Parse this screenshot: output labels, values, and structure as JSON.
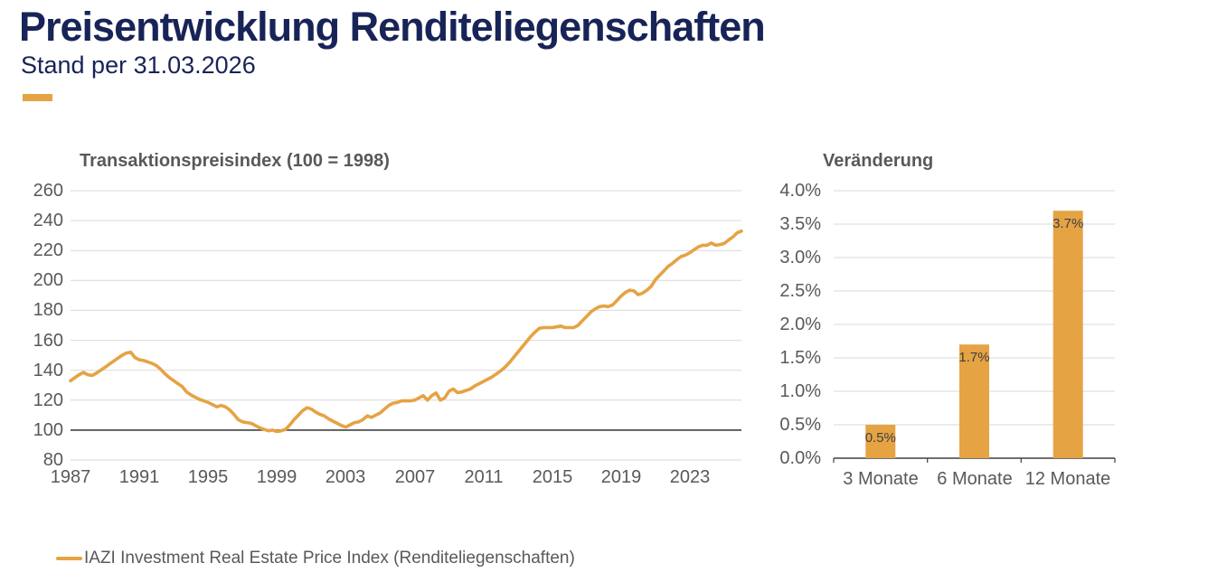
{
  "header": {
    "title": "Preisentwicklung Renditeliegenschaften",
    "subtitle": "Stand per 31.03.2026"
  },
  "colors": {
    "navy": "#182457",
    "orange": "#E5A344",
    "grid": "#D9D9D9",
    "axis_dark": "#404040",
    "axis_label": "#595959",
    "chart_title": "#595959",
    "bar_value_label": "#404040",
    "legend_text": "#595959"
  },
  "legend": {
    "label": "IAZI Investment Real Estate Price Index (Renditeliegenschaften)"
  },
  "chart_data": [
    {
      "id": "transaction-price-index",
      "type": "line",
      "title": "Transaktionspreisindex (100 = 1998)",
      "ylim": [
        80,
        260
      ],
      "ytick_step": 20,
      "ytick_labels": [
        "260",
        "240",
        "220",
        "200",
        "180",
        "160",
        "140",
        "120",
        "100",
        "80"
      ],
      "baseline_value": 100,
      "xtick_years": [
        1987,
        1991,
        1995,
        1999,
        2003,
        2007,
        2011,
        2015,
        2019,
        2023
      ],
      "xtick_labels": [
        "1987",
        "1991",
        "1995",
        "1999",
        "2003",
        "2007",
        "2011",
        "2015",
        "2019",
        "2023"
      ],
      "grid": true,
      "x_start": 1987.0,
      "x_step": 0.25,
      "series": [
        {
          "name": "IAZI Investment Real Estate Price Index (Renditeliegenschaften)",
          "color": "#E5A344",
          "values": [
            133,
            135,
            137,
            138.5,
            137,
            136.5,
            138,
            140,
            142,
            144,
            146,
            148,
            150,
            151.5,
            152,
            148.5,
            147,
            146.5,
            145.5,
            144.5,
            143,
            140.5,
            137.5,
            135,
            133,
            131,
            129,
            125.5,
            123.5,
            122,
            120.5,
            119.5,
            118.5,
            117,
            115.5,
            116.5,
            115.5,
            113.5,
            110.5,
            107,
            105.5,
            105,
            104.5,
            103,
            101.5,
            100.5,
            99.5,
            100,
            99,
            99.5,
            100.5,
            103.5,
            107,
            110,
            113,
            115,
            114,
            112,
            110.5,
            109.5,
            107.5,
            106,
            104.5,
            103,
            102,
            103.5,
            105,
            105.5,
            107,
            109.5,
            108.5,
            110,
            111.5,
            114,
            116.5,
            118,
            118.5,
            119.5,
            119.5,
            119.5,
            120,
            121.5,
            123,
            120,
            123,
            124.8,
            120,
            121.5,
            126,
            127.5,
            125,
            125.5,
            126.5,
            127.5,
            129.5,
            131,
            132.5,
            134,
            135.5,
            137.5,
            139.5,
            142,
            145,
            148.5,
            152,
            155.5,
            159,
            162.5,
            165.5,
            168,
            168.5,
            168.5,
            168.5,
            169,
            169.5,
            168.5,
            168.5,
            168.5,
            170,
            173,
            176,
            179,
            181,
            182.5,
            183,
            182.5,
            183.5,
            186.5,
            189.5,
            192,
            193.5,
            193,
            190.5,
            191.5,
            193.5,
            196,
            200.5,
            203.5,
            206.5,
            209.5,
            211.5,
            214,
            216,
            217,
            218.5,
            220.5,
            222.5,
            223.5,
            223.5,
            225,
            223.5,
            224,
            224.7,
            227,
            229.1,
            231.8,
            233
          ]
        }
      ]
    },
    {
      "id": "veraenderung",
      "type": "bar",
      "title": "Veränderung",
      "categories": [
        "3 Monate",
        "6 Monate",
        "12 Monate"
      ],
      "values": [
        0.5,
        1.7,
        3.7
      ],
      "value_labels": [
        "0.5%",
        "1.7%",
        "3.7%"
      ],
      "ylim": [
        0,
        4.0
      ],
      "ytick_step": 0.5,
      "ytick_labels": [
        "4.0%",
        "3.5%",
        "3.0%",
        "2.5%",
        "2.0%",
        "1.5%",
        "1.0%",
        "0.5%",
        "0.0%"
      ],
      "bar_color": "#E5A344",
      "grid": true
    }
  ]
}
